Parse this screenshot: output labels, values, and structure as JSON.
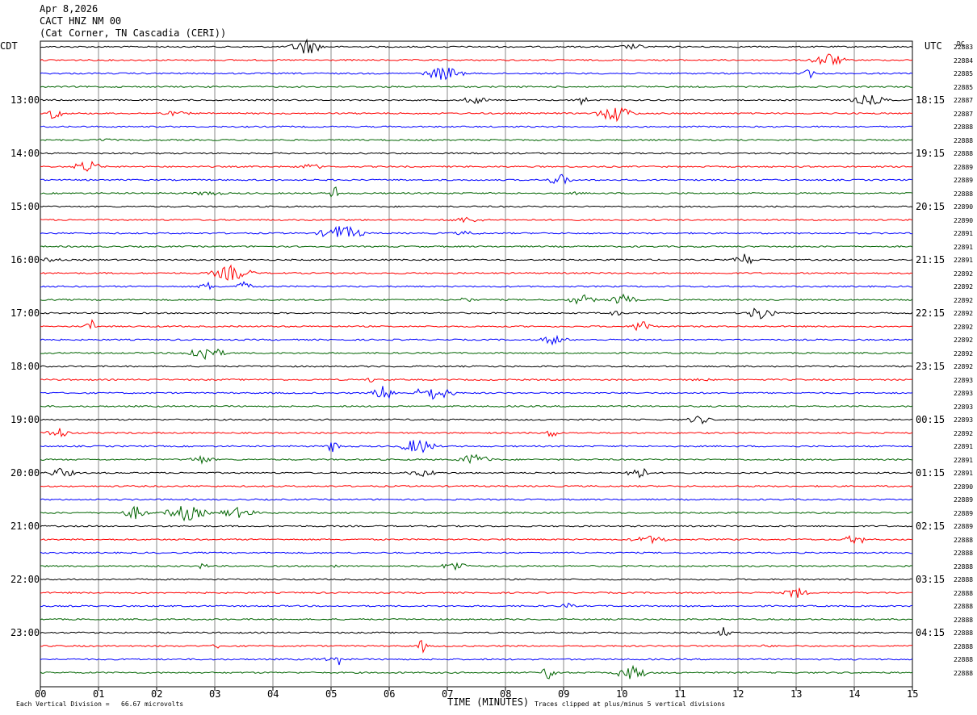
{
  "header": {
    "date": "Apr 8,2026",
    "station": "CACT HNZ NM 00",
    "location": "(Cat Corner, TN Cascadia (CERI))"
  },
  "left_tz": "CDT",
  "right_tz": "UTC",
  "dc_label": "DC",
  "chart_data": {
    "type": "helicorder",
    "xlabel": "TIME (MINUTES)",
    "x_ticks": [
      "00",
      "01",
      "02",
      "03",
      "04",
      "05",
      "06",
      "07",
      "08",
      "09",
      "10",
      "11",
      "12",
      "13",
      "14",
      "15"
    ],
    "xlim": [
      0,
      15
    ],
    "trace_minutes": 15,
    "trace_colors": [
      "#000000",
      "#ff0000",
      "#0000ff",
      "#006400"
    ],
    "left_time_labels": [
      "13:00",
      "14:00",
      "15:00",
      "16:00",
      "17:00",
      "18:00",
      "19:00",
      "20:00",
      "21:00",
      "22:00",
      "23:00"
    ],
    "right_time_labels": [
      "18:15",
      "19:15",
      "20:15",
      "21:15",
      "22:15",
      "23:15",
      "00:15",
      "01:15",
      "02:15",
      "03:15",
      "04:15"
    ],
    "dc_offsets": [
      "22883",
      "22884",
      "22885",
      "22885",
      "22887",
      "22887",
      "22888",
      "22888",
      "22888",
      "22889",
      "22889",
      "22888",
      "22890",
      "22890",
      "22891",
      "22891",
      "22891",
      "22892",
      "22892",
      "22892",
      "22892",
      "22892",
      "22892",
      "22892",
      "22892",
      "22893",
      "22893",
      "22893",
      "22893",
      "22892",
      "22891",
      "22891",
      "22891",
      "22890",
      "22889",
      "22889",
      "22889",
      "22888",
      "22888",
      "22888",
      "22888",
      "22888",
      "22888",
      "22888",
      "22888",
      "22888",
      "22888",
      "22888"
    ],
    "scale_note": "Each Vertical Division =   66.67 microvolts",
    "clip_note": "Traces clipped at plus/minus 5 vertical divisions"
  }
}
